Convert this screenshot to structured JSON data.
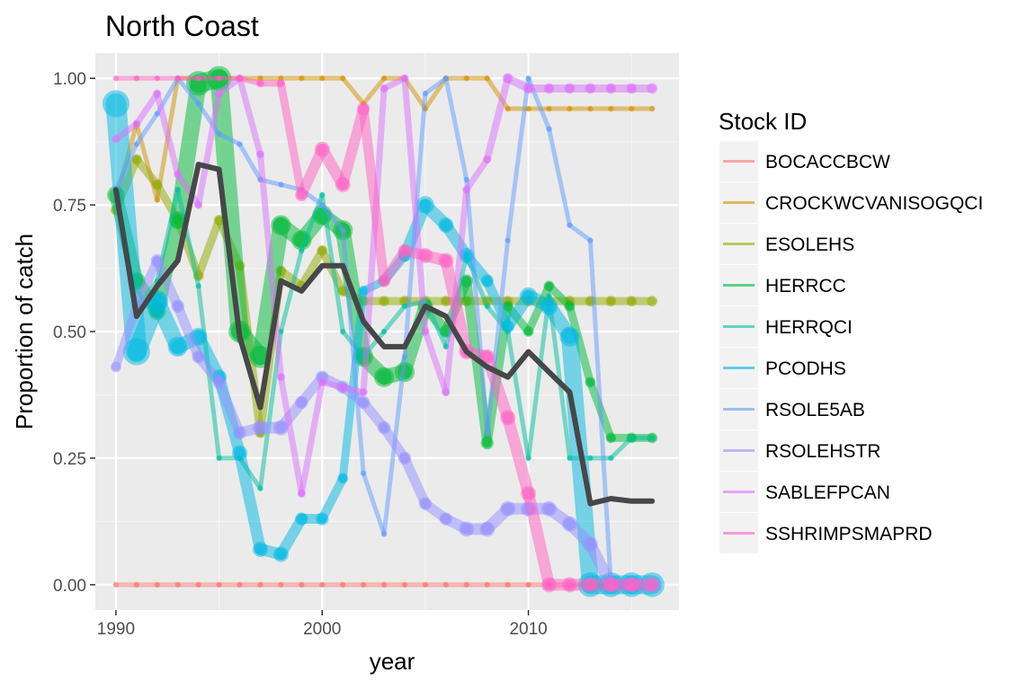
{
  "chart_data": {
    "type": "line",
    "title": "North Coast",
    "xlabel": "year",
    "ylabel": "Proportion of catch",
    "xlim": [
      1989.0,
      2017.3
    ],
    "ylim": [
      -0.05,
      1.05
    ],
    "x_ticks": [
      1990,
      2000,
      2010
    ],
    "x_tick_labels": [
      "1990",
      "2000",
      "2010"
    ],
    "y_ticks": [
      0,
      0.25,
      0.5,
      0.75,
      1
    ],
    "y_tick_labels": [
      "0.00",
      "0.25",
      "0.50",
      "0.75",
      "1.00"
    ],
    "grid": true,
    "legend": {
      "title": "Stock ID",
      "position": "right"
    },
    "series": [
      {
        "name": "BOCACCBCW",
        "color": "#F8766D",
        "x": [
          1990,
          1991,
          1992,
          1993,
          1994,
          1995,
          1996,
          1997,
          1998,
          1999,
          2000,
          2001,
          2002,
          2003,
          2004,
          2005,
          2006,
          2007,
          2008,
          2009,
          2010,
          2011,
          2012,
          2013,
          2014,
          2015,
          2016
        ],
        "y": [
          0,
          0,
          0,
          0,
          0,
          0,
          0,
          0,
          0,
          0,
          0,
          0,
          0,
          0,
          0,
          0,
          0,
          0,
          0,
          0,
          0,
          0,
          0,
          0,
          0,
          0,
          0
        ],
        "size": [
          0.1,
          0.1,
          0.1,
          0.1,
          0.1,
          0.1,
          0.1,
          0.1,
          0.1,
          0.1,
          0.1,
          0.1,
          0.1,
          0.1,
          0.1,
          0.1,
          0.1,
          0.1,
          0.1,
          0.1,
          0.1,
          0.1,
          0.1,
          0.1,
          0.1,
          0.1,
          0.1
        ]
      },
      {
        "name": "CROCKWCVANISOGQCI",
        "color": "#D39200",
        "x": [
          1990,
          1991,
          1992,
          1993,
          1994,
          1995,
          1996,
          1997,
          1998,
          1999,
          2000,
          2001,
          2002,
          2003,
          2004,
          2005,
          2006,
          2007,
          2008,
          2009,
          2010,
          2011,
          2012,
          2013,
          2014,
          2015,
          2016
        ],
        "y": [
          0.76,
          0.91,
          0.76,
          1.0,
          1.0,
          1.0,
          1.0,
          1.0,
          1.0,
          1.0,
          1.0,
          1.0,
          0.95,
          1.0,
          1.0,
          0.94,
          1.0,
          1.0,
          1.0,
          0.94,
          0.94,
          0.94,
          0.94,
          0.94,
          0.94,
          0.94,
          0.94
        ],
        "size": [
          0.1,
          0.1,
          0.1,
          0.1,
          0.1,
          0.1,
          0.1,
          0.1,
          0.1,
          0.1,
          0.1,
          0.1,
          0.1,
          0.1,
          0.1,
          0.1,
          0.1,
          0.1,
          0.1,
          0.1,
          0.1,
          0.1,
          0.1,
          0.1,
          0.1,
          0.1,
          0.1
        ]
      },
      {
        "name": "ESOLEHS",
        "color": "#93AA00",
        "x": [
          1990,
          1991,
          1992,
          1993,
          1994,
          1995,
          1996,
          1997,
          1998,
          1999,
          2000,
          2001,
          2002,
          2003,
          2004,
          2005,
          2006,
          2007,
          2008,
          2009,
          2010,
          2011,
          2012,
          2013,
          2014,
          2015,
          2016
        ],
        "y": [
          0.74,
          0.84,
          0.79,
          0.72,
          0.61,
          0.72,
          0.63,
          0.3,
          0.62,
          0.59,
          0.66,
          0.58,
          0.56,
          0.56,
          0.56,
          0.56,
          0.56,
          0.56,
          0.56,
          0.56,
          0.56,
          0.56,
          0.56,
          0.56,
          0.56,
          0.56,
          0.56
        ],
        "size": [
          0.3,
          0.3,
          0.3,
          0.3,
          0.3,
          0.3,
          0.3,
          0.3,
          0.3,
          0.3,
          0.3,
          0.3,
          0.3,
          0.3,
          0.3,
          0.3,
          0.3,
          0.3,
          0.3,
          0.3,
          0.3,
          0.3,
          0.3,
          0.3,
          0.3,
          0.3,
          0.3
        ]
      },
      {
        "name": "HERRCC",
        "color": "#00BA38",
        "x": [
          1990,
          1991,
          1992,
          1993,
          1994,
          1995,
          1996,
          1997,
          1998,
          1999,
          2000,
          2001,
          2002,
          2003,
          2004,
          2005,
          2006,
          2007,
          2008,
          2009,
          2010,
          2011,
          2012,
          2013,
          2014,
          2015,
          2016
        ],
        "y": [
          0.77,
          0.6,
          0.54,
          0.72,
          0.99,
          1.0,
          0.5,
          0.45,
          0.71,
          0.68,
          0.73,
          0.7,
          0.45,
          0.41,
          0.42,
          0.55,
          0.5,
          0.6,
          0.28,
          0.55,
          0.5,
          0.59,
          0.55,
          0.4,
          0.29,
          0.29,
          0.29
        ],
        "size": [
          0.6,
          0.6,
          0.6,
          0.6,
          0.9,
          0.9,
          0.8,
          0.8,
          0.7,
          0.7,
          0.7,
          0.7,
          0.7,
          0.7,
          0.7,
          0.5,
          0.4,
          0.4,
          0.4,
          0.3,
          0.3,
          0.3,
          0.3,
          0.3,
          0.3,
          0.3,
          0.3
        ]
      },
      {
        "name": "HERRQCI",
        "color": "#00C19F",
        "x": [
          1990,
          1991,
          1992,
          1993,
          1994,
          1995,
          1996,
          1997,
          1998,
          1999,
          2000,
          2001,
          2002,
          2003,
          2004,
          2005,
          2006,
          2007,
          2008,
          2009,
          2010,
          2011,
          2012,
          2013,
          2014,
          2015,
          2016
        ],
        "y": [
          0.78,
          0.55,
          0.6,
          0.78,
          0.59,
          0.25,
          0.25,
          0.19,
          0.5,
          0.66,
          0.77,
          0.5,
          0.45,
          0.5,
          0.55,
          0.56,
          0.47,
          0.65,
          0.55,
          0.5,
          0.25,
          0.57,
          0.25,
          0.25,
          0.25,
          0.29,
          0.29
        ],
        "size": [
          0.1,
          0.1,
          0.1,
          0.1,
          0.1,
          0.1,
          0.1,
          0.1,
          0.1,
          0.1,
          0.1,
          0.1,
          0.1,
          0.1,
          0.1,
          0.1,
          0.1,
          0.1,
          0.1,
          0.1,
          0.1,
          0.1,
          0.1,
          0.1,
          0.1,
          0.1,
          0.1
        ]
      },
      {
        "name": "PCODHS",
        "color": "#00B9E3",
        "x": [
          1990,
          1991,
          1992,
          1993,
          1994,
          1995,
          1996,
          1997,
          1998,
          1999,
          2000,
          2001,
          2002,
          2003,
          2004,
          2005,
          2006,
          2007,
          2008,
          2009,
          2010,
          2011,
          2012,
          2013,
          2014,
          2015,
          2016
        ],
        "y": [
          0.95,
          0.46,
          0.56,
          0.47,
          0.49,
          0.41,
          0.26,
          0.07,
          0.06,
          0.13,
          0.13,
          0.21,
          0.58,
          0.6,
          0.65,
          0.75,
          0.71,
          0.65,
          0.6,
          0.51,
          0.57,
          0.55,
          0.49,
          0.0,
          0.0,
          0.0,
          0.0
        ],
        "size": [
          1.0,
          1.0,
          0.8,
          0.7,
          0.6,
          0.5,
          0.5,
          0.5,
          0.5,
          0.4,
          0.4,
          0.3,
          0.3,
          0.3,
          0.4,
          0.6,
          0.5,
          0.5,
          0.4,
          0.4,
          0.6,
          0.6,
          0.7,
          0.9,
          0.9,
          0.9,
          0.9
        ]
      },
      {
        "name": "RSOLE5AB",
        "color": "#619CFF",
        "x": [
          1990,
          1991,
          1992,
          1993,
          1994,
          1995,
          1996,
          1997,
          1998,
          1999,
          2000,
          2001,
          2002,
          2003,
          2004,
          2005,
          2006,
          2007,
          2008,
          2009,
          2010,
          2011,
          2012,
          2013,
          2014,
          2015,
          2016
        ],
        "y": [
          0.78,
          0.87,
          0.93,
          1.0,
          0.95,
          0.89,
          0.87,
          0.8,
          0.79,
          0.78,
          0.75,
          0.7,
          0.22,
          0.1,
          0.45,
          0.97,
          1.0,
          0.8,
          0.3,
          0.68,
          1.0,
          0.9,
          0.71,
          0.68,
          0.0,
          0.0,
          0.0
        ],
        "size": [
          0.1,
          0.1,
          0.1,
          0.1,
          0.1,
          0.1,
          0.1,
          0.1,
          0.1,
          0.1,
          0.1,
          0.1,
          0.1,
          0.1,
          0.1,
          0.1,
          0.1,
          0.1,
          0.1,
          0.1,
          0.1,
          0.1,
          0.1,
          0.1,
          0.1,
          0.1,
          0.1
        ]
      },
      {
        "name": "RSOLEHSTR",
        "color": "#9590FF",
        "x": [
          1990,
          1991,
          1992,
          1993,
          1994,
          1995,
          1996,
          1997,
          1998,
          1999,
          2000,
          2001,
          2002,
          2003,
          2004,
          2005,
          2006,
          2007,
          2008,
          2009,
          2010,
          2011,
          2012,
          2013,
          2014,
          2015,
          2016
        ],
        "y": [
          0.43,
          0.55,
          0.64,
          0.55,
          0.45,
          0.4,
          0.3,
          0.31,
          0.31,
          0.36,
          0.41,
          0.39,
          0.36,
          0.31,
          0.25,
          0.16,
          0.13,
          0.11,
          0.11,
          0.15,
          0.15,
          0.15,
          0.12,
          0.08,
          0.0,
          0.0,
          0.0
        ],
        "size": [
          0.3,
          0.3,
          0.4,
          0.4,
          0.4,
          0.4,
          0.4,
          0.5,
          0.5,
          0.4,
          0.4,
          0.4,
          0.4,
          0.4,
          0.4,
          0.4,
          0.4,
          0.5,
          0.5,
          0.5,
          0.5,
          0.5,
          0.5,
          0.5,
          0.5,
          0.5,
          0.5
        ]
      },
      {
        "name": "SABLEFPCAN",
        "color": "#DB72FB",
        "x": [
          1990,
          1991,
          1992,
          1993,
          1994,
          1995,
          1996,
          1997,
          1998,
          1999,
          2000,
          2001,
          2002,
          2003,
          2004,
          2005,
          2006,
          2007,
          2008,
          2009,
          2010,
          2011,
          2012,
          2013,
          2014,
          2015,
          2016
        ],
        "y": [
          0.88,
          0.91,
          0.97,
          0.81,
          0.75,
          0.97,
          1.0,
          0.85,
          0.41,
          0.18,
          0.4,
          0.39,
          0.38,
          0.98,
          1.0,
          0.5,
          0.38,
          0.78,
          0.84,
          1.0,
          0.98,
          0.98,
          0.98,
          0.98,
          0.98,
          0.98,
          0.98
        ],
        "size": [
          0.2,
          0.2,
          0.2,
          0.2,
          0.2,
          0.2,
          0.2,
          0.2,
          0.2,
          0.2,
          0.2,
          0.2,
          0.2,
          0.2,
          0.2,
          0.2,
          0.2,
          0.2,
          0.2,
          0.3,
          0.3,
          0.3,
          0.3,
          0.3,
          0.3,
          0.3,
          0.3
        ]
      },
      {
        "name": "SSHRIMPSMAPRD",
        "color": "#FF61C3",
        "x": [
          1990,
          1991,
          1992,
          1993,
          1994,
          1995,
          1996,
          1997,
          1998,
          1999,
          2000,
          2001,
          2002,
          2003,
          2004,
          2005,
          2006,
          2007,
          2008,
          2009,
          2010,
          2011,
          2012,
          2013,
          2014,
          2015,
          2016
        ],
        "y": [
          1.0,
          1.0,
          1.0,
          1.0,
          1.0,
          1.0,
          1.0,
          0.99,
          0.99,
          0.77,
          0.86,
          0.79,
          0.94,
          0.6,
          0.66,
          0.65,
          0.64,
          0.46,
          0.45,
          0.33,
          0.18,
          0.0,
          0.0,
          0.0,
          0.0,
          0.0,
          0.0
        ],
        "size": [
          0.1,
          0.1,
          0.1,
          0.1,
          0.1,
          0.1,
          0.1,
          0.2,
          0.2,
          0.4,
          0.5,
          0.5,
          0.4,
          0.4,
          0.4,
          0.5,
          0.5,
          0.5,
          0.5,
          0.5,
          0.5,
          0.5,
          0.5,
          0.5,
          0.5,
          0.5,
          0.5
        ]
      },
      {
        "name": "",
        "color": "#474747",
        "x": [
          1990,
          1991,
          1992,
          1993,
          1994,
          1995,
          1996,
          1997,
          1998,
          1999,
          2000,
          2001,
          2002,
          2003,
          2004,
          2005,
          2006,
          2007,
          2008,
          2009,
          2010,
          2011,
          2012,
          2013,
          2014,
          2015,
          2016
        ],
        "y": [
          0.78,
          0.53,
          0.59,
          0.64,
          0.83,
          0.82,
          0.49,
          0.35,
          0.6,
          0.58,
          0.63,
          0.63,
          0.52,
          0.47,
          0.47,
          0.55,
          0.53,
          0.46,
          0.43,
          0.41,
          0.46,
          0.42,
          0.38,
          0.16,
          0.17,
          0.165,
          0.165
        ]
      }
    ]
  }
}
